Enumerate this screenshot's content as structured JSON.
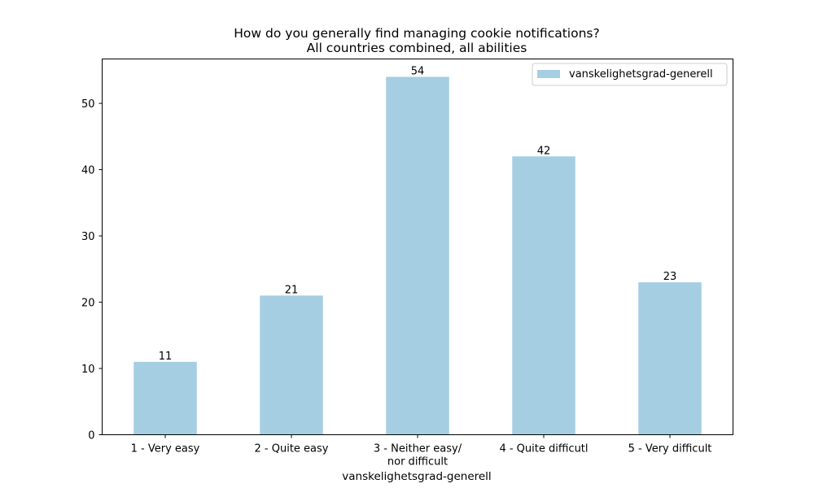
{
  "chart_data": {
    "type": "bar",
    "title": "How do you generally find managing cookie notifications?",
    "subtitle": "All countries combined, all abilities",
    "xlabel": "vanskelighetsgrad-generell",
    "ylabel": "",
    "categories": [
      [
        "1 - Very easy"
      ],
      [
        "2 - Quite easy"
      ],
      [
        "3 - Neither easy/",
        "nor difficult"
      ],
      [
        "4 - Quite difficutl"
      ],
      [
        "5 - Very difficult"
      ]
    ],
    "series": [
      {
        "name": "vanskelighetsgrad-generell",
        "values": [
          11,
          21,
          54,
          42,
          23
        ]
      }
    ],
    "ylim": [
      0,
      56.7
    ],
    "yticks": [
      0,
      10,
      20,
      30,
      40,
      50
    ],
    "grid": false,
    "legend_position": "top-right",
    "bar_color": "#a6cee3"
  }
}
